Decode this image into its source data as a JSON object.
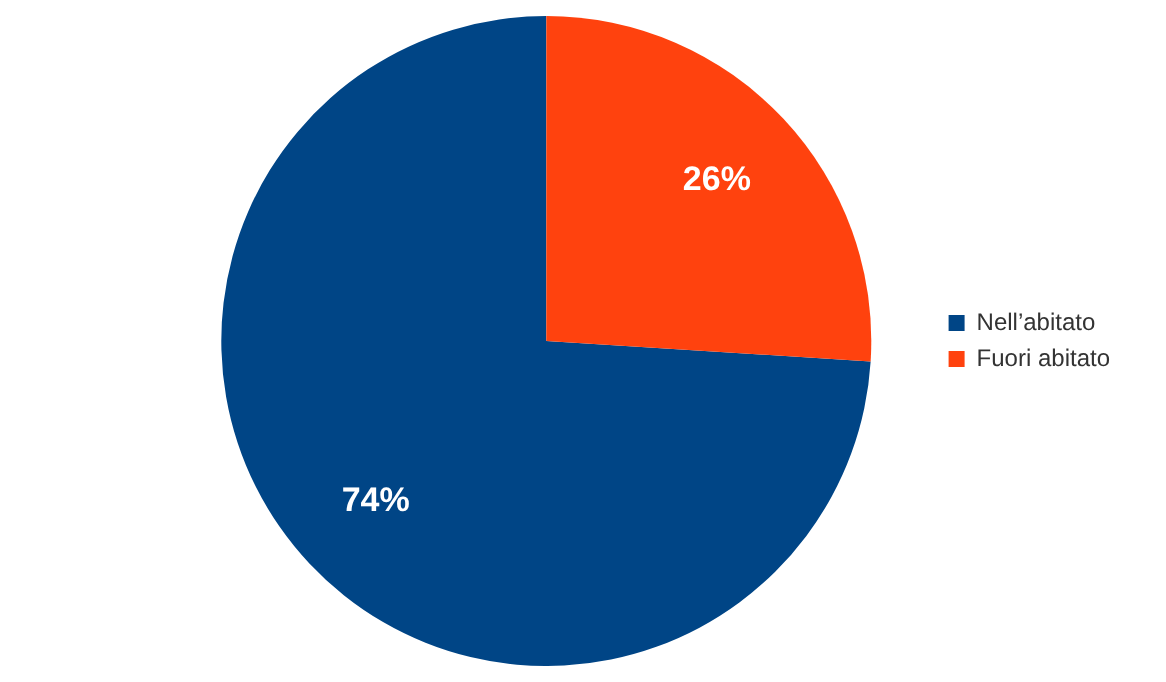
{
  "chart_data": {
    "type": "pie",
    "categories": [
      "Nell’abitato",
      "Fuori abitato"
    ],
    "values": [
      74,
      26
    ],
    "colors": [
      "#004586",
      "#ff420e"
    ],
    "value_labels": [
      "74%",
      "26%"
    ],
    "legend": "right"
  }
}
